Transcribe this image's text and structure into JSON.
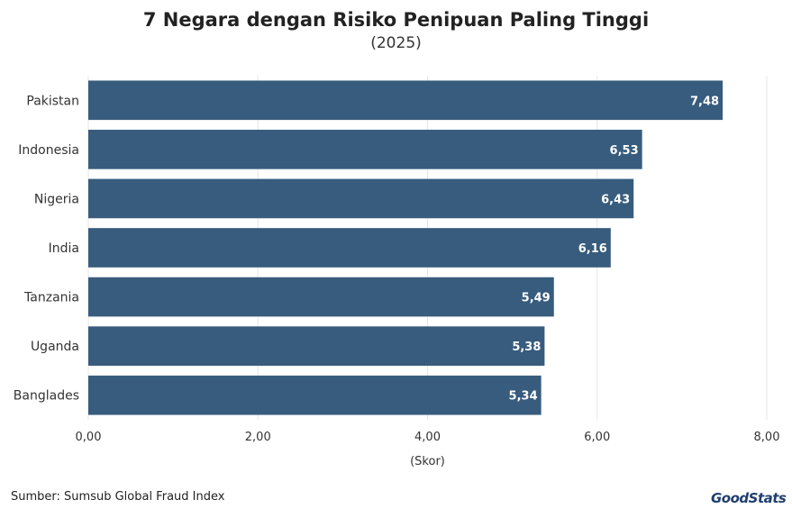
{
  "header": {
    "title": "7 Negara dengan Risiko Penipuan Paling Tinggi",
    "subtitle": "(2025)"
  },
  "footer": {
    "source": "Sumber: Sumsub Global Fraud Index",
    "logo_text": "GoodStats"
  },
  "colors": {
    "bar": "#375c7d",
    "grid": "#e6e6e6",
    "axis_text": "#333333",
    "value_label": "#ffffff"
  },
  "chart_data": {
    "type": "bar",
    "orientation": "horizontal",
    "title": "7 Negara dengan Risiko Penipuan Paling Tinggi",
    "subtitle": "(2025)",
    "categories": [
      "Pakistan",
      "Indonesia",
      "Nigeria",
      "India",
      "Tanzania",
      "Uganda",
      "Banglades"
    ],
    "values": [
      7.48,
      6.53,
      6.43,
      6.16,
      5.49,
      5.38,
      5.34
    ],
    "value_labels": [
      "7,48",
      "6,53",
      "6,43",
      "6,16",
      "5,49",
      "5,38",
      "5,34"
    ],
    "xlabel": "(Skor)",
    "ylabel": "",
    "xlim": [
      0,
      8
    ],
    "x_ticks": [
      0,
      2,
      4,
      6,
      8
    ],
    "x_tick_labels": [
      "0,00",
      "2,00",
      "4,00",
      "6,00",
      "8,00"
    ],
    "grid": true,
    "legend": "none"
  }
}
